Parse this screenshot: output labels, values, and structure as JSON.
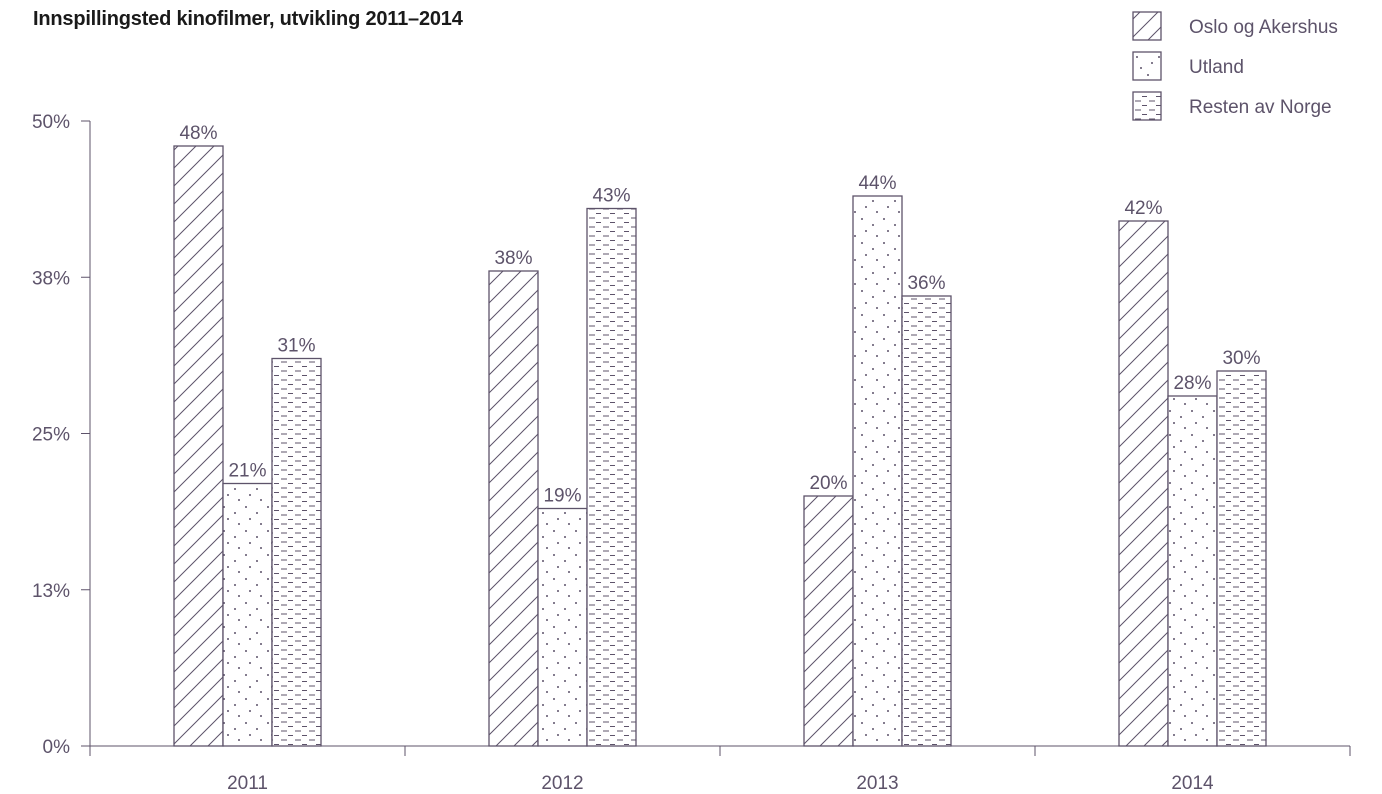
{
  "chart_data": {
    "type": "bar",
    "title": "Innspillingsted kinofilmer, utvikling 2011–2014",
    "categories": [
      "2011",
      "2012",
      "2013",
      "2014"
    ],
    "series": [
      {
        "name": "Oslo og Akershus",
        "values": [
          48,
          38,
          20,
          42
        ],
        "labels": [
          "48%",
          "38%",
          "20%",
          "42%"
        ],
        "pattern": "hatch"
      },
      {
        "name": "Utland",
        "values": [
          21,
          19,
          44,
          28
        ],
        "labels": [
          "21%",
          "19%",
          "44%",
          "28%"
        ],
        "pattern": "dots"
      },
      {
        "name": "Resten av Norge",
        "values": [
          31,
          43,
          36,
          30
        ],
        "labels": [
          "31%",
          "43%",
          "36%",
          "30%"
        ],
        "pattern": "dashes"
      }
    ],
    "yticks": [
      {
        "value": 0,
        "label": "0%"
      },
      {
        "value": 12.5,
        "label": "13%"
      },
      {
        "value": 25,
        "label": "25%"
      },
      {
        "value": 37.5,
        "label": "38%"
      },
      {
        "value": 50,
        "label": "50%"
      }
    ],
    "ylim": [
      0,
      50
    ],
    "xlabel": "",
    "ylabel": "",
    "grid": false,
    "legend_position": "top-right",
    "colors": {
      "stroke": "#5d536a",
      "text": "#5d536a",
      "title": "#1a1a1a"
    }
  }
}
